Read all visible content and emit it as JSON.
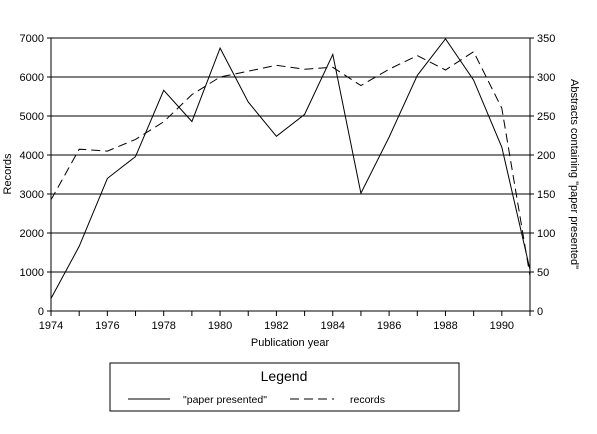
{
  "chart_data": {
    "type": "line",
    "xlabel": "Publication year",
    "ylabel_left": "Records",
    "ylabel_right": "Abstracts containing \"paper presented\"",
    "x": [
      1974,
      1975,
      1976,
      1977,
      1978,
      1979,
      1980,
      1981,
      1982,
      1983,
      1984,
      1985,
      1986,
      1987,
      1988,
      1989,
      1990,
      1991
    ],
    "x_tick_labels": [
      "1974",
      "1976",
      "1978",
      "1980",
      "1982",
      "1984",
      "1986",
      "1988",
      "1990"
    ],
    "ylim_left": [
      0,
      7000
    ],
    "yticks_left": [
      "0",
      "1000",
      "2000",
      "3000",
      "4000",
      "5000",
      "6000",
      "7000"
    ],
    "ylim_right": [
      0,
      350
    ],
    "yticks_right": [
      "0",
      "50",
      "100",
      "150",
      "200",
      "250",
      "300",
      "350"
    ],
    "grid": "horizontal",
    "legend_title": "Legend",
    "legend_placement": "bottom",
    "series": [
      {
        "name": "\"paper presented\"",
        "axis": "right",
        "style": "solid",
        "color": "#000000",
        "values": [
          16,
          83,
          170,
          198,
          283,
          243,
          337,
          268,
          224,
          252,
          329,
          151,
          223,
          302,
          349,
          296,
          210,
          53
        ]
      },
      {
        "name": "records",
        "axis": "left",
        "style": "dashed",
        "color": "#000000",
        "values": [
          2850,
          4150,
          4100,
          4400,
          4850,
          5550,
          6000,
          6150,
          6300,
          6200,
          6250,
          5780,
          6200,
          6550,
          6180,
          6650,
          5200,
          900
        ]
      }
    ]
  }
}
